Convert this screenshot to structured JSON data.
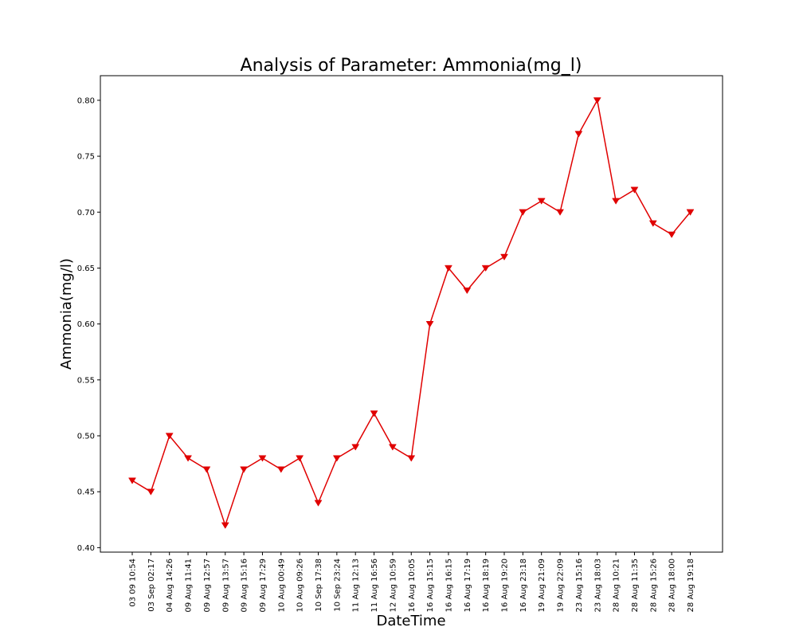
{
  "chart_data": {
    "type": "line",
    "title": "Analysis of Parameter: Ammonia(mg_l)",
    "xlabel": "DateTime",
    "ylabel": "Ammonia(mg/l)",
    "ylim": [
      0.396,
      0.822
    ],
    "yticks": [
      "0.40",
      "0.45",
      "0.50",
      "0.55",
      "0.60",
      "0.65",
      "0.70",
      "0.75",
      "0.80"
    ],
    "grid": false,
    "line_color": "#e00000",
    "marker": "triangle-down",
    "categories": [
      "03 09 10:54",
      "03 Sep 02:17",
      "04 Aug 14:26",
      "09 Aug 11:41",
      "09 Aug 12:57",
      "09 Aug 13:57",
      "09 Aug 15:16",
      "09 Aug 17:29",
      "10 Aug 00:49",
      "10 Aug 09:26",
      "10 Sep 17:38",
      "10 Sep 23:24",
      "11 Aug 12:13",
      "11 Aug 16:56",
      "12 Aug 10:59",
      "16 Aug 10:05",
      "16 Aug 15:15",
      "16 Aug 16:15",
      "16 Aug 17:19",
      "16 Aug 18:19",
      "16 Aug 19:20",
      "16 Aug 23:18",
      "19 Aug 21:09",
      "19 Aug 22:09",
      "23 Aug 15:16",
      "23 Aug 18:03",
      "28 Aug 10:21",
      "28 Aug 11:35",
      "28 Aug 15:26",
      "28 Aug 18:00",
      "28 Aug 19:18"
    ],
    "series": [
      {
        "values": [
          0.46,
          0.45,
          0.5,
          0.48,
          0.47,
          0.42,
          0.47,
          0.48,
          0.47,
          0.48,
          0.44,
          0.48,
          0.49,
          0.52,
          0.49,
          0.48,
          0.6,
          0.65,
          0.63,
          0.65,
          0.66,
          0.7,
          0.71,
          0.7,
          0.77,
          0.8,
          0.71,
          0.72,
          0.69,
          0.68,
          0.7
        ]
      }
    ]
  }
}
